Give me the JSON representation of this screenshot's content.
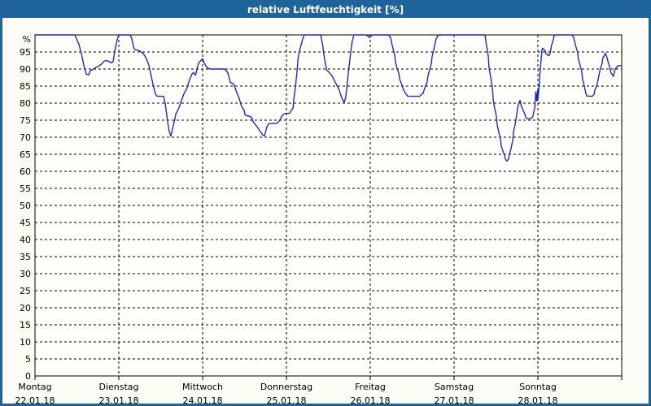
{
  "window": {
    "title": "relative Luftfeuchtigkeit [%]"
  },
  "colors": {
    "title_bar": "#1E649B",
    "border": "#1E649B",
    "line": "#2424CC",
    "grid": "#000000",
    "text": "#000000",
    "background": "#FCFCF5",
    "plot_background": "#FEFEFA",
    "title_text": "#FFFFFF"
  },
  "chart_data": {
    "type": "line",
    "title": "relative Luftfeuchtigkeit [%]",
    "ylabel": "%",
    "y_axis_unit_label": "%",
    "ylim": [
      0,
      100
    ],
    "y_tick_step": 5,
    "y_ticks": [
      0,
      5,
      10,
      15,
      20,
      25,
      30,
      35,
      40,
      45,
      50,
      55,
      60,
      65,
      70,
      75,
      80,
      85,
      90,
      95
    ],
    "grid": "dashed",
    "legend": "none",
    "x_unit": "hours since Monday 00:00",
    "x_range_hours": [
      0,
      168
    ],
    "x_axis": {
      "days": [
        {
          "weekday": "Montag",
          "date": "22.01.18"
        },
        {
          "weekday": "Dienstag",
          "date": "23.01.18"
        },
        {
          "weekday": "Mittwoch",
          "date": "24.01.18"
        },
        {
          "weekday": "Donnerstag",
          "date": "25.01.18"
        },
        {
          "weekday": "Freitag",
          "date": "26.01.18"
        },
        {
          "weekday": "Samstag",
          "date": "27.01.18"
        },
        {
          "weekday": "Sonntag",
          "date": "28.01.18"
        }
      ]
    },
    "series": [
      {
        "name": "relative Luftfeuchtigkeit",
        "unit": "%",
        "points": [
          [
            0,
            100
          ],
          [
            11.4,
            100
          ],
          [
            12.5,
            97.5
          ],
          [
            13.3,
            94.5
          ],
          [
            14,
            91
          ],
          [
            14.7,
            88.5
          ],
          [
            15.4,
            88.3
          ],
          [
            15.8,
            89.5
          ],
          [
            16.8,
            90
          ],
          [
            17.5,
            90.5
          ],
          [
            18.2,
            90.8
          ],
          [
            19.1,
            91.5
          ],
          [
            19.8,
            92.3
          ],
          [
            20.5,
            92.5
          ],
          [
            21.4,
            92.1
          ],
          [
            21.9,
            91.8
          ],
          [
            22.4,
            92.2
          ],
          [
            22.8,
            95
          ],
          [
            23.5,
            98.5
          ],
          [
            24,
            100
          ],
          [
            27.2,
            100
          ],
          [
            27.7,
            99
          ],
          [
            28.2,
            96.5
          ],
          [
            28.6,
            95.7
          ],
          [
            29.8,
            95.4
          ],
          [
            31,
            94.6
          ],
          [
            31.9,
            93
          ],
          [
            32.6,
            91.2
          ],
          [
            33.3,
            87.8
          ],
          [
            34,
            84.6
          ],
          [
            34.5,
            82.6
          ],
          [
            35,
            82
          ],
          [
            36.8,
            82
          ],
          [
            37.3,
            79.8
          ],
          [
            37.7,
            76.7
          ],
          [
            38,
            74.3
          ],
          [
            38.4,
            71.9
          ],
          [
            38.9,
            70.3
          ],
          [
            39.6,
            73.5
          ],
          [
            40.1,
            75.5
          ],
          [
            40.3,
            76.8
          ],
          [
            41.2,
            78.6
          ],
          [
            41.9,
            80.6
          ],
          [
            42.6,
            82.6
          ],
          [
            43.6,
            84.6
          ],
          [
            44.3,
            87
          ],
          [
            45,
            88.6
          ],
          [
            45.4,
            89
          ],
          [
            45.9,
            88.2
          ],
          [
            46.1,
            88.6
          ],
          [
            46.6,
            91
          ],
          [
            47.1,
            92.1
          ],
          [
            48,
            93
          ],
          [
            48.5,
            91.7
          ],
          [
            48.9,
            91
          ],
          [
            49.4,
            90.3
          ],
          [
            50.1,
            90
          ],
          [
            54.3,
            90
          ],
          [
            54.8,
            89.4
          ],
          [
            55.2,
            89
          ],
          [
            55.4,
            88.2
          ],
          [
            55.9,
            86.2
          ],
          [
            56.4,
            85.8
          ],
          [
            56.9,
            85.6
          ],
          [
            57.1,
            85
          ],
          [
            57.5,
            83.8
          ],
          [
            57.8,
            83
          ],
          [
            58.3,
            81.8
          ],
          [
            58.7,
            80.6
          ],
          [
            59,
            79.5
          ],
          [
            59.4,
            78.6
          ],
          [
            59.9,
            77.9
          ],
          [
            60.1,
            76.7
          ],
          [
            60.6,
            76.3
          ],
          [
            61.3,
            76.2
          ],
          [
            61.7,
            76
          ],
          [
            62.2,
            75.5
          ],
          [
            62.4,
            74.7
          ],
          [
            62.9,
            74
          ],
          [
            63.6,
            73.1
          ],
          [
            64.5,
            71.7
          ],
          [
            65.2,
            70.7
          ],
          [
            65.7,
            70.4
          ],
          [
            65.9,
            71.1
          ],
          [
            66.4,
            73.1
          ],
          [
            66.9,
            73.9
          ],
          [
            67.1,
            74
          ],
          [
            69.4,
            74.1
          ],
          [
            69.9,
            74.7
          ],
          [
            70.4,
            75.5
          ],
          [
            70.6,
            76.1
          ],
          [
            71.1,
            76.7
          ],
          [
            71.5,
            76.9
          ],
          [
            72,
            77
          ],
          [
            72.9,
            77
          ],
          [
            73.4,
            77.9
          ],
          [
            73.9,
            78.6
          ],
          [
            74.1,
            81
          ],
          [
            74.6,
            85
          ],
          [
            75,
            89
          ],
          [
            75.3,
            92.9
          ],
          [
            75.7,
            95.3
          ],
          [
            76.2,
            97
          ],
          [
            76.7,
            99
          ],
          [
            77.1,
            100
          ],
          [
            81.8,
            100
          ],
          [
            82,
            99
          ],
          [
            82.4,
            97
          ],
          [
            82.6,
            95
          ],
          [
            83,
            92.5
          ],
          [
            83.3,
            90.9
          ],
          [
            83.5,
            89.7
          ],
          [
            83.9,
            89.3
          ],
          [
            84.3,
            88.9
          ],
          [
            84.6,
            88.5
          ],
          [
            85,
            88.1
          ],
          [
            85.4,
            87.3
          ],
          [
            85.8,
            86.5
          ],
          [
            86.2,
            85.7
          ],
          [
            86.6,
            84.9
          ],
          [
            87,
            84.1
          ],
          [
            87.4,
            82.9
          ],
          [
            87.8,
            81.7
          ],
          [
            88.1,
            81
          ],
          [
            88.5,
            80.2
          ],
          [
            88.8,
            81
          ],
          [
            89,
            82.1
          ],
          [
            89.2,
            83.7
          ],
          [
            89.4,
            85.7
          ],
          [
            89.6,
            87.7
          ],
          [
            89.8,
            89.7
          ],
          [
            90.1,
            92.1
          ],
          [
            90.3,
            94
          ],
          [
            90.6,
            96.4
          ],
          [
            90.8,
            98
          ],
          [
            91.1,
            99.2
          ],
          [
            91.3,
            100
          ],
          [
            94.6,
            100
          ],
          [
            95.3,
            99.7
          ],
          [
            95.8,
            99.2
          ],
          [
            96.2,
            99.7
          ],
          [
            96.7,
            100
          ],
          [
            101.1,
            100
          ],
          [
            101.8,
            99.3
          ],
          [
            102.1,
            97.7
          ],
          [
            102.5,
            96.1
          ],
          [
            103,
            94.1
          ],
          [
            103.2,
            92.1
          ],
          [
            103.7,
            90.2
          ],
          [
            104.2,
            88.6
          ],
          [
            104.4,
            87
          ],
          [
            104.9,
            85.8
          ],
          [
            105.3,
            84.6
          ],
          [
            105.6,
            83.8
          ],
          [
            106,
            83
          ],
          [
            106.5,
            82.4
          ],
          [
            106.7,
            82
          ],
          [
            110.2,
            82
          ],
          [
            110.7,
            82.6
          ],
          [
            111.2,
            83
          ],
          [
            111.4,
            83.8
          ],
          [
            111.8,
            85
          ],
          [
            112.3,
            86.2
          ],
          [
            112.5,
            87.8
          ],
          [
            113,
            89.8
          ],
          [
            113.5,
            91.7
          ],
          [
            113.7,
            93.7
          ],
          [
            114.2,
            95.7
          ],
          [
            114.6,
            97.7
          ],
          [
            114.9,
            98.9
          ],
          [
            115.3,
            99.7
          ],
          [
            115.8,
            100
          ],
          [
            128.6,
            100
          ],
          [
            128.9,
            99.7
          ],
          [
            129.3,
            96.9
          ],
          [
            129.8,
            93.7
          ],
          [
            130,
            90.5
          ],
          [
            130.5,
            87.4
          ],
          [
            131,
            84.2
          ],
          [
            131.2,
            81
          ],
          [
            131.6,
            78.6
          ],
          [
            132.1,
            76.3
          ],
          [
            132.3,
            73.9
          ],
          [
            132.8,
            71.5
          ],
          [
            133.3,
            69.5
          ],
          [
            133.5,
            67.5
          ],
          [
            134,
            65.9
          ],
          [
            134.4,
            64.8
          ],
          [
            134.7,
            63.6
          ],
          [
            135.1,
            63
          ],
          [
            135.6,
            63.6
          ],
          [
            135.8,
            64.8
          ],
          [
            136.3,
            66.7
          ],
          [
            136.8,
            69.1
          ],
          [
            137,
            71.5
          ],
          [
            137.5,
            73.9
          ],
          [
            137.9,
            76.3
          ],
          [
            138.2,
            78.6
          ],
          [
            138.6,
            80.2
          ],
          [
            138.9,
            80.8
          ],
          [
            139.3,
            79
          ],
          [
            139.8,
            77.9
          ],
          [
            140.3,
            76.7
          ],
          [
            140.5,
            75.8
          ],
          [
            141,
            75.4
          ],
          [
            142.1,
            75.5
          ],
          [
            142.6,
            76.2
          ],
          [
            142.8,
            77.4
          ],
          [
            143.1,
            78.6
          ],
          [
            143.2,
            80.2
          ],
          [
            143.4,
            83.3
          ],
          [
            143.6,
            81.7
          ],
          [
            143.7,
            80.6
          ],
          [
            143.9,
            83.7
          ],
          [
            144,
            81
          ],
          [
            144.2,
            83.3
          ],
          [
            144.4,
            85.7
          ],
          [
            144.5,
            87.3
          ],
          [
            144.7,
            90
          ],
          [
            145,
            93.7
          ],
          [
            145.2,
            95.7
          ],
          [
            145.4,
            96.1
          ],
          [
            146.1,
            95.3
          ],
          [
            146.3,
            94.5
          ],
          [
            146.8,
            94.1
          ],
          [
            147.2,
            93.9
          ],
          [
            147.5,
            94.5
          ],
          [
            147.9,
            96.9
          ],
          [
            148.4,
            98.5
          ],
          [
            148.6,
            99.7
          ],
          [
            149.1,
            100
          ],
          [
            153.8,
            100
          ],
          [
            154.2,
            99.3
          ],
          [
            154.5,
            98.1
          ],
          [
            154.9,
            96.5
          ],
          [
            155.4,
            94.9
          ],
          [
            155.6,
            92.9
          ],
          [
            156.1,
            91
          ],
          [
            156.6,
            89
          ],
          [
            156.8,
            87
          ],
          [
            157.3,
            85
          ],
          [
            157.7,
            83
          ],
          [
            158,
            82.1
          ],
          [
            159.6,
            82
          ],
          [
            160.1,
            82.6
          ],
          [
            160.3,
            83.8
          ],
          [
            160.8,
            85
          ],
          [
            161.2,
            86.6
          ],
          [
            161.5,
            88.2
          ],
          [
            161.9,
            90.2
          ],
          [
            162.4,
            91.7
          ],
          [
            162.6,
            93.3
          ],
          [
            163.1,
            94.1
          ],
          [
            163.3,
            94.7
          ],
          [
            163.8,
            93.3
          ],
          [
            164.2,
            91.7
          ],
          [
            164.7,
            90.2
          ],
          [
            164.9,
            89
          ],
          [
            165.4,
            88.2
          ],
          [
            165.6,
            87.8
          ],
          [
            165.8,
            88.6
          ],
          [
            166.1,
            89.8
          ],
          [
            166.5,
            90.5
          ],
          [
            167,
            91
          ],
          [
            167.9,
            91
          ]
        ]
      }
    ]
  }
}
